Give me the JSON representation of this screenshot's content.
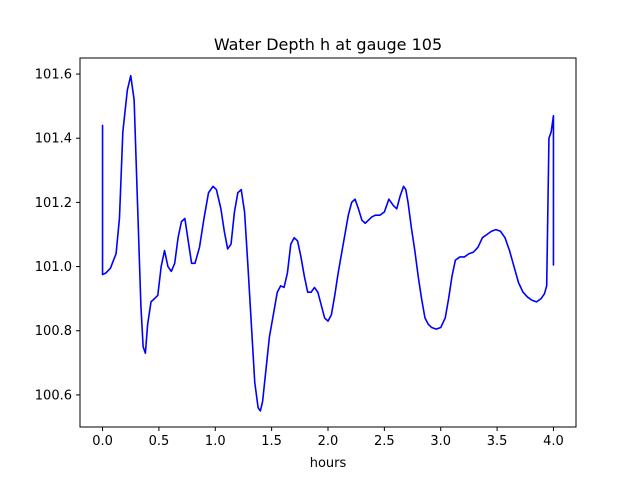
{
  "chart_data": {
    "type": "line",
    "title": "Water Depth h at gauge 105",
    "xlabel": "hours",
    "ylabel": "",
    "xlim": [
      -0.2,
      4.2
    ],
    "ylim": [
      100.5,
      101.65
    ],
    "x_ticks": [
      0.0,
      0.5,
      1.0,
      1.5,
      2.0,
      2.5,
      3.0,
      3.5,
      4.0
    ],
    "x_tick_labels": [
      "0.0",
      "0.5",
      "1.0",
      "1.5",
      "2.0",
      "2.5",
      "3.0",
      "3.5",
      "4.0"
    ],
    "y_ticks": [
      100.6,
      100.8,
      101.0,
      101.2,
      101.4,
      101.6
    ],
    "y_tick_labels": [
      "100.6",
      "100.8",
      "101.0",
      "101.2",
      "101.4",
      "101.6"
    ],
    "grid": false,
    "series": [
      {
        "color": "#0000ff",
        "x": [
          0.0,
          0.0,
          0.03,
          0.07,
          0.12,
          0.15,
          0.18,
          0.22,
          0.25,
          0.28,
          0.31,
          0.34,
          0.36,
          0.38,
          0.4,
          0.43,
          0.46,
          0.49,
          0.52,
          0.55,
          0.58,
          0.61,
          0.64,
          0.67,
          0.7,
          0.73,
          0.76,
          0.79,
          0.82,
          0.86,
          0.9,
          0.94,
          0.98,
          1.01,
          1.05,
          1.08,
          1.11,
          1.14,
          1.17,
          1.2,
          1.23,
          1.26,
          1.29,
          1.32,
          1.35,
          1.38,
          1.4,
          1.42,
          1.45,
          1.48,
          1.52,
          1.55,
          1.58,
          1.61,
          1.64,
          1.67,
          1.7,
          1.73,
          1.76,
          1.79,
          1.82,
          1.85,
          1.88,
          1.91,
          1.94,
          1.97,
          2.0,
          2.03,
          2.06,
          2.09,
          2.12,
          2.15,
          2.18,
          2.21,
          2.24,
          2.27,
          2.3,
          2.33,
          2.36,
          2.39,
          2.42,
          2.46,
          2.5,
          2.54,
          2.58,
          2.61,
          2.64,
          2.67,
          2.69,
          2.71,
          2.74,
          2.77,
          2.8,
          2.83,
          2.86,
          2.89,
          2.92,
          2.96,
          3.0,
          3.04,
          3.07,
          3.1,
          3.13,
          3.17,
          3.21,
          3.25,
          3.29,
          3.33,
          3.37,
          3.41,
          3.45,
          3.49,
          3.53,
          3.57,
          3.61,
          3.65,
          3.69,
          3.73,
          3.77,
          3.81,
          3.85,
          3.89,
          3.92,
          3.94,
          3.96,
          3.96,
          3.98,
          4.0,
          4.0
        ],
        "y": [
          101.44,
          100.975,
          100.98,
          100.995,
          101.04,
          101.15,
          101.42,
          101.55,
          101.595,
          101.52,
          101.2,
          100.88,
          100.75,
          100.73,
          100.82,
          100.89,
          100.9,
          100.91,
          101.0,
          101.05,
          101.0,
          100.985,
          101.01,
          101.09,
          101.14,
          101.15,
          101.08,
          101.01,
          101.01,
          101.06,
          101.15,
          101.23,
          101.25,
          101.24,
          101.18,
          101.11,
          101.055,
          101.07,
          101.17,
          101.23,
          101.24,
          101.17,
          101.0,
          100.82,
          100.64,
          100.56,
          100.55,
          100.58,
          100.68,
          100.78,
          100.86,
          100.92,
          100.94,
          100.935,
          100.98,
          101.07,
          101.09,
          101.08,
          101.03,
          100.97,
          100.92,
          100.92,
          100.935,
          100.92,
          100.88,
          100.84,
          100.83,
          100.85,
          100.91,
          100.98,
          101.04,
          101.1,
          101.16,
          101.2,
          101.21,
          101.18,
          101.145,
          101.135,
          101.145,
          101.155,
          101.16,
          101.16,
          101.17,
          101.21,
          101.19,
          101.18,
          101.22,
          101.25,
          101.24,
          101.2,
          101.12,
          101.05,
          100.97,
          100.9,
          100.84,
          100.82,
          100.81,
          100.805,
          100.81,
          100.84,
          100.9,
          100.97,
          101.02,
          101.03,
          101.03,
          101.04,
          101.045,
          101.06,
          101.09,
          101.1,
          101.11,
          101.115,
          101.11,
          101.09,
          101.05,
          101.0,
          100.95,
          100.92,
          100.905,
          100.895,
          100.89,
          100.9,
          100.915,
          100.94,
          101.4,
          101.4,
          101.42,
          101.47,
          101.005
        ]
      }
    ]
  }
}
